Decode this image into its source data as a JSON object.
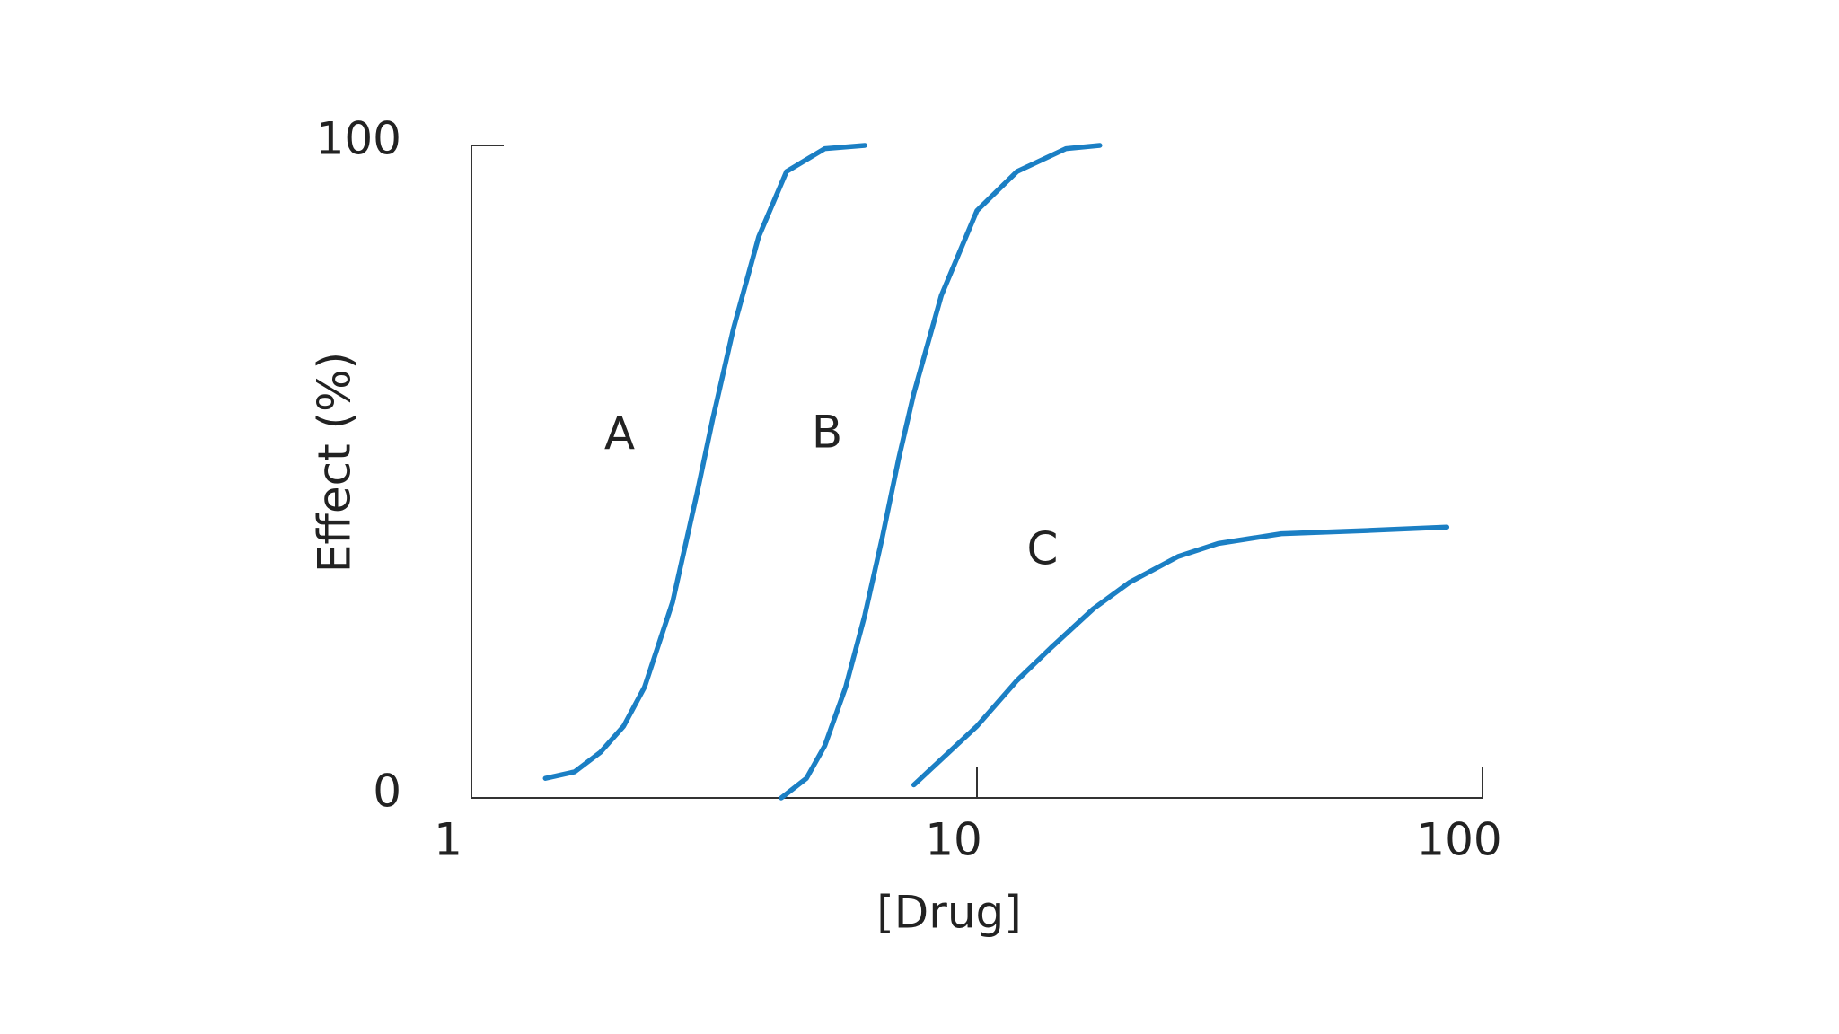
{
  "chart_data": {
    "type": "line",
    "x_label": "[Drug]",
    "y_label": "Effect (%)",
    "xscale": "log",
    "xlim": [
      1,
      100
    ],
    "ylim": [
      0,
      100
    ],
    "xticks": [
      1,
      10,
      100
    ],
    "yticks": [
      0,
      100
    ],
    "grid": false,
    "series": [
      {
        "name": "A",
        "color": "#1b7fc4",
        "x": [
          1.4,
          1.6,
          1.8,
          2,
          2.2,
          2.5,
          2.8,
          3,
          3.3,
          3.7,
          4.2,
          5,
          6
        ],
        "values": [
          3,
          4,
          7,
          11,
          17,
          30,
          47,
          58,
          72,
          86,
          96,
          99.5,
          100
        ]
      },
      {
        "name": "B",
        "color": "#1b7fc4",
        "x": [
          4.1,
          4.6,
          5,
          5.5,
          6,
          6.5,
          7,
          7.5,
          8.5,
          10,
          12,
          15,
          17.5
        ],
        "values": [
          0,
          3,
          8,
          17,
          28,
          40,
          52,
          62,
          77,
          90,
          96,
          99.5,
          100
        ]
      },
      {
        "name": "C",
        "color": "#1b7fc4",
        "x": [
          7.5,
          10,
          12,
          14,
          17,
          20,
          25,
          30,
          40,
          60,
          85
        ],
        "values": [
          2,
          11,
          18,
          23,
          29,
          33,
          37,
          39,
          40.5,
          41,
          41.5
        ]
      }
    ]
  }
}
